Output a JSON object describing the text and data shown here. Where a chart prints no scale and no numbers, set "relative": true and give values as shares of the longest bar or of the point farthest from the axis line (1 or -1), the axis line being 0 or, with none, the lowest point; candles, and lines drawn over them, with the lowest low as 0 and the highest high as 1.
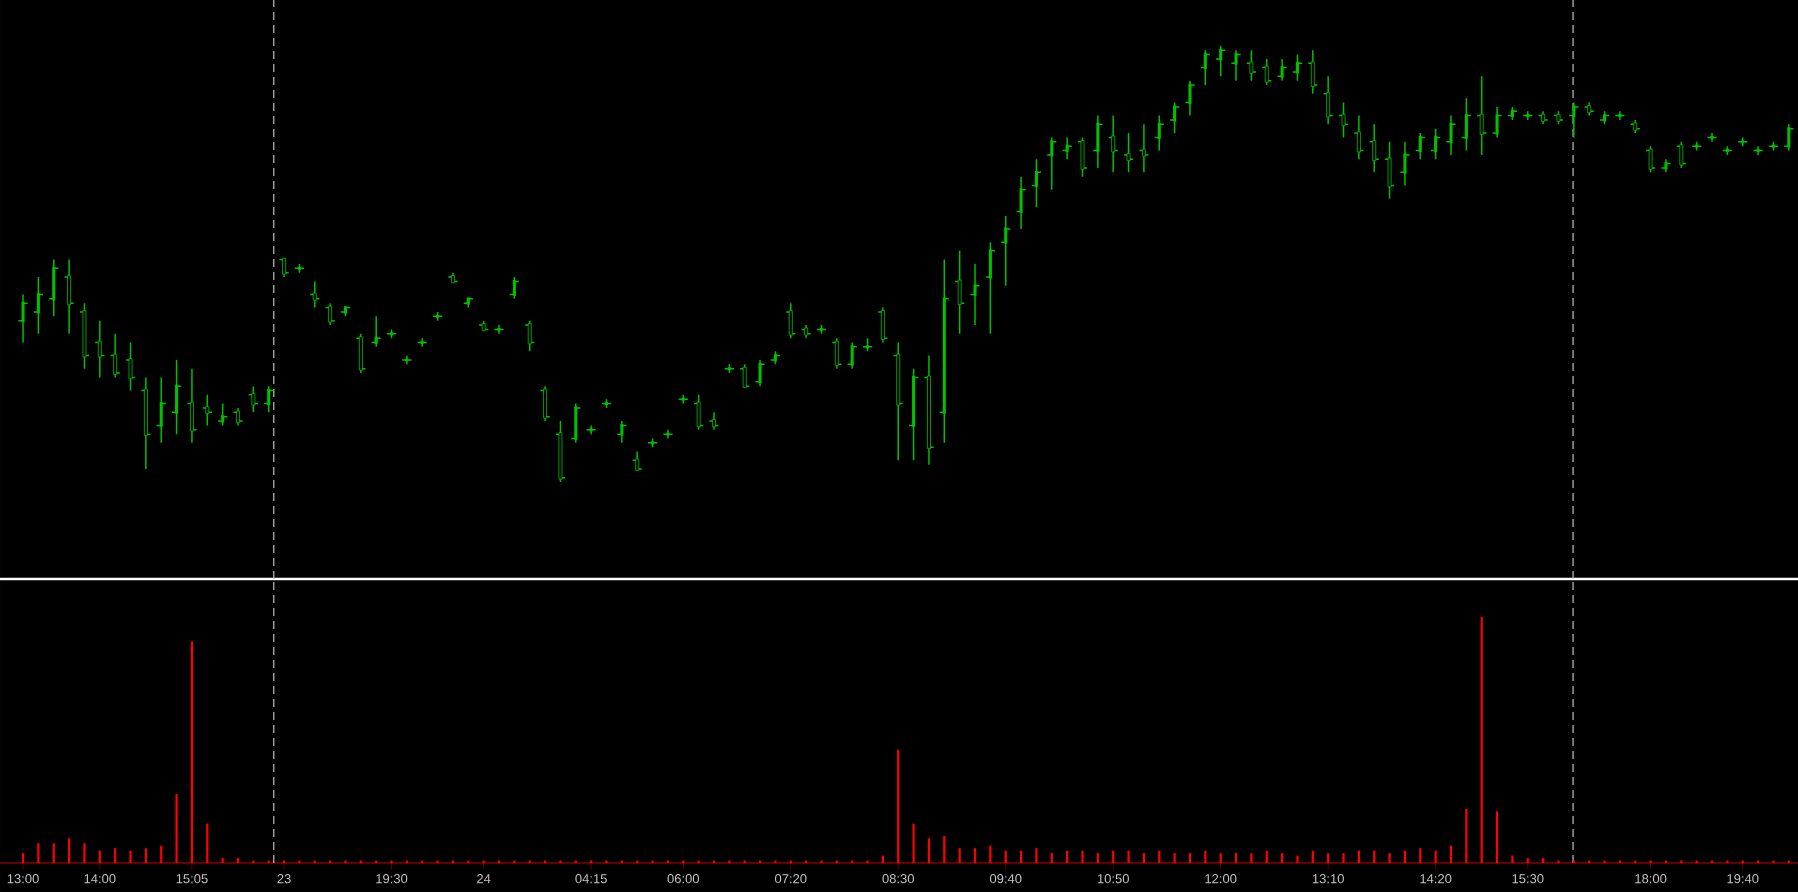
{
  "chart_data": [
    {
      "type": "candlestick",
      "relative": true,
      "color": "#00c000",
      "categories": [
        null,
        null,
        null,
        null,
        null,
        null,
        null,
        null,
        null,
        null,
        null,
        null,
        null,
        null,
        null,
        null,
        null,
        null,
        null,
        null,
        null,
        null,
        null,
        null,
        null,
        null,
        null,
        null,
        null,
        null,
        null,
        null,
        null,
        null,
        null,
        null,
        null,
        null,
        null,
        null,
        null,
        null,
        null,
        null,
        null,
        null,
        null,
        null,
        null,
        null,
        null,
        null,
        null,
        null,
        null,
        null,
        null,
        null,
        null,
        null,
        null,
        null,
        null,
        null,
        null,
        null,
        null,
        null,
        null,
        null,
        null,
        null,
        null,
        null,
        null,
        null,
        null,
        null,
        null,
        null,
        null,
        null,
        null,
        null,
        null,
        null,
        null,
        null,
        null,
        null,
        null,
        null,
        null,
        null,
        null,
        null,
        null,
        null,
        null,
        null,
        null,
        null,
        null,
        null,
        null,
        null,
        null,
        null,
        null,
        null,
        null,
        null,
        null,
        null,
        null,
        null
      ],
      "ohlc": [
        [
          0.37,
          0.43,
          0.32,
          0.41
        ],
        [
          0.39,
          0.47,
          0.34,
          0.43
        ],
        [
          0.42,
          0.51,
          0.38,
          0.49
        ],
        [
          0.47,
          0.51,
          0.34,
          0.41
        ],
        [
          0.39,
          0.41,
          0.26,
          0.29
        ],
        [
          0.32,
          0.37,
          0.24,
          0.29
        ],
        [
          0.29,
          0.34,
          0.24,
          0.25
        ],
        [
          0.28,
          0.32,
          0.21,
          0.24
        ],
        [
          0.21,
          0.24,
          0.03,
          0.11
        ],
        [
          0.13,
          0.24,
          0.09,
          0.18
        ],
        [
          0.16,
          0.28,
          0.11,
          0.22
        ],
        [
          0.18,
          0.26,
          0.09,
          0.12
        ],
        [
          0.17,
          0.2,
          0.13,
          0.16
        ],
        [
          0.14,
          0.18,
          0.13,
          0.15
        ],
        [
          0.16,
          0.17,
          0.13,
          0.14
        ],
        [
          0.2,
          0.22,
          0.16,
          0.18
        ],
        [
          0.18,
          0.22,
          0.16,
          0.21
        ],
        [
          0.51,
          0.51,
          0.47,
          0.48
        ],
        [
          0.49,
          0.5,
          0.48,
          0.49
        ],
        [
          0.43,
          0.46,
          0.4,
          0.42
        ],
        [
          0.4,
          0.41,
          0.36,
          0.37
        ],
        [
          0.39,
          0.4,
          0.38,
          0.4
        ],
        [
          0.33,
          0.34,
          0.25,
          0.26
        ],
        [
          0.32,
          0.38,
          0.31,
          0.33
        ],
        [
          0.34,
          0.35,
          0.33,
          0.34
        ],
        [
          0.28,
          0.29,
          0.27,
          0.28
        ],
        [
          0.32,
          0.33,
          0.31,
          0.32
        ],
        [
          0.38,
          0.39,
          0.37,
          0.38
        ],
        [
          0.47,
          0.48,
          0.46,
          0.46
        ],
        [
          0.41,
          0.42,
          0.4,
          0.42
        ],
        [
          0.36,
          0.37,
          0.35,
          0.35
        ],
        [
          0.35,
          0.36,
          0.34,
          0.35
        ],
        [
          0.43,
          0.47,
          0.42,
          0.46
        ],
        [
          0.36,
          0.37,
          0.3,
          0.32
        ],
        [
          0.21,
          0.22,
          0.14,
          0.15
        ],
        [
          0.11,
          0.14,
          0.0,
          0.01
        ],
        [
          0.1,
          0.18,
          0.09,
          0.17
        ],
        [
          0.12,
          0.13,
          0.11,
          0.12
        ],
        [
          0.18,
          0.19,
          0.17,
          0.18
        ],
        [
          0.11,
          0.14,
          0.09,
          0.13
        ],
        [
          0.05,
          0.07,
          0.03,
          0.03
        ],
        [
          0.09,
          0.1,
          0.08,
          0.09
        ],
        [
          0.11,
          0.12,
          0.1,
          0.11
        ],
        [
          0.19,
          0.2,
          0.18,
          0.19
        ],
        [
          0.18,
          0.2,
          0.12,
          0.13
        ],
        [
          0.14,
          0.16,
          0.12,
          0.13
        ],
        [
          0.26,
          0.27,
          0.25,
          0.26
        ],
        [
          0.26,
          0.27,
          0.22,
          0.22
        ],
        [
          0.23,
          0.28,
          0.22,
          0.27
        ],
        [
          0.28,
          0.3,
          0.27,
          0.29
        ],
        [
          0.39,
          0.41,
          0.33,
          0.34
        ],
        [
          0.35,
          0.36,
          0.33,
          0.34
        ],
        [
          0.35,
          0.36,
          0.34,
          0.35
        ],
        [
          0.32,
          0.33,
          0.26,
          0.27
        ],
        [
          0.27,
          0.32,
          0.26,
          0.31
        ],
        [
          0.31,
          0.33,
          0.3,
          0.31
        ],
        [
          0.39,
          0.4,
          0.32,
          0.33
        ],
        [
          0.29,
          0.32,
          0.05,
          0.18
        ],
        [
          0.13,
          0.26,
          0.05,
          0.24
        ],
        [
          0.24,
          0.29,
          0.04,
          0.08
        ],
        [
          0.16,
          0.51,
          0.09,
          0.42
        ],
        [
          0.46,
          0.53,
          0.34,
          0.41
        ],
        [
          0.43,
          0.5,
          0.36,
          0.45
        ],
        [
          0.47,
          0.55,
          0.34,
          0.53
        ],
        [
          0.55,
          0.61,
          0.45,
          0.58
        ],
        [
          0.62,
          0.7,
          0.58,
          0.67
        ],
        [
          0.68,
          0.74,
          0.63,
          0.71
        ],
        [
          0.75,
          0.79,
          0.67,
          0.78
        ],
        [
          0.76,
          0.79,
          0.74,
          0.77
        ],
        [
          0.78,
          0.79,
          0.7,
          0.72
        ],
        [
          0.76,
          0.84,
          0.72,
          0.82
        ],
        [
          0.79,
          0.84,
          0.71,
          0.76
        ],
        [
          0.75,
          0.8,
          0.71,
          0.74
        ],
        [
          0.76,
          0.82,
          0.71,
          0.75
        ],
        [
          0.79,
          0.84,
          0.76,
          0.82
        ],
        [
          0.83,
          0.87,
          0.8,
          0.86
        ],
        [
          0.87,
          0.92,
          0.84,
          0.91
        ],
        [
          0.95,
          0.99,
          0.91,
          0.98
        ],
        [
          0.97,
          1.0,
          0.93,
          0.99
        ],
        [
          0.96,
          0.99,
          0.92,
          0.98
        ],
        [
          0.96,
          0.99,
          0.92,
          0.94
        ],
        [
          0.95,
          0.97,
          0.91,
          0.92
        ],
        [
          0.93,
          0.97,
          0.92,
          0.95
        ],
        [
          0.94,
          0.98,
          0.92,
          0.96
        ],
        [
          0.96,
          0.99,
          0.89,
          0.91
        ],
        [
          0.89,
          0.93,
          0.82,
          0.84
        ],
        [
          0.84,
          0.87,
          0.79,
          0.82
        ],
        [
          0.8,
          0.84,
          0.74,
          0.76
        ],
        [
          0.78,
          0.82,
          0.71,
          0.74
        ],
        [
          0.74,
          0.78,
          0.65,
          0.68
        ],
        [
          0.71,
          0.78,
          0.68,
          0.75
        ],
        [
          0.76,
          0.8,
          0.74,
          0.79
        ],
        [
          0.76,
          0.81,
          0.74,
          0.79
        ],
        [
          0.78,
          0.84,
          0.75,
          0.82
        ],
        [
          0.79,
          0.88,
          0.76,
          0.84
        ],
        [
          0.84,
          0.93,
          0.75,
          0.8
        ],
        [
          0.8,
          0.86,
          0.79,
          0.84
        ],
        [
          0.84,
          0.86,
          0.83,
          0.85
        ],
        [
          0.84,
          0.85,
          0.83,
          0.84
        ],
        [
          0.84,
          0.85,
          0.82,
          0.83
        ],
        [
          0.84,
          0.85,
          0.82,
          0.83
        ],
        [
          0.84,
          0.87,
          0.79,
          0.86
        ],
        [
          0.86,
          0.87,
          0.84,
          0.85
        ],
        [
          0.83,
          0.85,
          0.82,
          0.84
        ],
        [
          0.84,
          0.85,
          0.83,
          0.84
        ],
        [
          0.82,
          0.83,
          0.8,
          0.81
        ],
        [
          0.76,
          0.77,
          0.71,
          0.72
        ],
        [
          0.72,
          0.74,
          0.71,
          0.73
        ],
        [
          0.77,
          0.78,
          0.72,
          0.73
        ],
        [
          0.77,
          0.78,
          0.76,
          0.77
        ],
        [
          0.79,
          0.8,
          0.78,
          0.79
        ],
        [
          0.76,
          0.77,
          0.75,
          0.76
        ],
        [
          0.78,
          0.79,
          0.77,
          0.78
        ],
        [
          0.76,
          0.77,
          0.75,
          0.76
        ],
        [
          0.77,
          0.78,
          0.76,
          0.77
        ],
        [
          0.77,
          0.82,
          0.76,
          0.81
        ]
      ]
    },
    {
      "type": "bar",
      "relative": true,
      "color": "#ff0000",
      "categories": [
        "13:00",
        null,
        null,
        null,
        null,
        "14:00",
        null,
        null,
        null,
        null,
        null,
        "15:05",
        null,
        null,
        null,
        null,
        null,
        "23",
        null,
        null,
        null,
        null,
        null,
        null,
        "19:30",
        null,
        null,
        null,
        null,
        null,
        "24",
        null,
        null,
        null,
        null,
        null,
        null,
        "04:15",
        null,
        null,
        null,
        null,
        null,
        "06:00",
        null,
        null,
        null,
        null,
        null,
        null,
        "07:20",
        null,
        null,
        null,
        null,
        null,
        null,
        "08:30",
        null,
        null,
        null,
        null,
        null,
        null,
        "09:40",
        null,
        null,
        null,
        null,
        null,
        null,
        "10:50",
        null,
        null,
        null,
        null,
        null,
        null,
        "12:00",
        null,
        null,
        null,
        null,
        null,
        null,
        "13:10",
        null,
        null,
        null,
        null,
        null,
        null,
        "14:20",
        null,
        null,
        null,
        null,
        null,
        "15:30",
        null,
        null,
        null,
        null,
        null,
        null,
        null,
        "18:00",
        null,
        null,
        null,
        null,
        null,
        "19:40",
        null,
        null,
        null
      ],
      "values": [
        0.04,
        0.08,
        0.08,
        0.1,
        0.08,
        0.05,
        0.06,
        0.05,
        0.06,
        0.07,
        0.28,
        0.9,
        0.16,
        0.02,
        0.02,
        0.01,
        0.01,
        0.01,
        0.01,
        0.01,
        0.01,
        0.01,
        0.01,
        0.01,
        0.01,
        0.01,
        0.01,
        0.01,
        0.01,
        0.01,
        0.01,
        0.01,
        0.01,
        0.01,
        0.01,
        0.01,
        0.01,
        0.01,
        0.01,
        0.01,
        0.01,
        0.01,
        0.01,
        0.01,
        0.01,
        0.01,
        0.01,
        0.01,
        0.01,
        0.01,
        0.01,
        0.01,
        0.01,
        0.01,
        0.01,
        0.01,
        0.03,
        0.46,
        0.16,
        0.1,
        0.11,
        0.06,
        0.06,
        0.07,
        0.05,
        0.05,
        0.06,
        0.04,
        0.05,
        0.05,
        0.04,
        0.05,
        0.05,
        0.04,
        0.05,
        0.04,
        0.04,
        0.05,
        0.04,
        0.04,
        0.04,
        0.05,
        0.04,
        0.03,
        0.05,
        0.04,
        0.04,
        0.05,
        0.05,
        0.04,
        0.05,
        0.06,
        0.05,
        0.07,
        0.22,
        1.0,
        0.21,
        0.03,
        0.02,
        0.02,
        0.01,
        0.01,
        0.01,
        0.01,
        0.01,
        0.01,
        0.01,
        0.01,
        0.01,
        0.01,
        0.01,
        0.01,
        0.01,
        0.01,
        0.01,
        0.01
      ]
    }
  ]
}
